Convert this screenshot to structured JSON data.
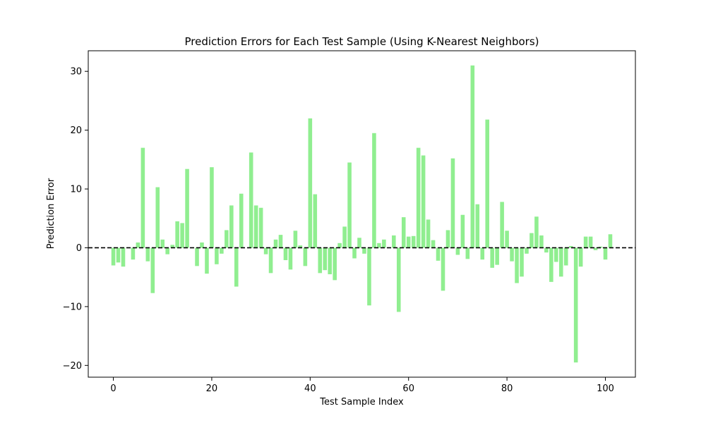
{
  "chart_data": {
    "type": "bar",
    "title": "Prediction Errors for Each Test Sample (Using K-Nearest Neighbors)",
    "xlabel": "Test Sample Index",
    "ylabel": "Prediction Error",
    "xlim": [
      -5.1,
      106.1
    ],
    "ylim": [
      -22.0,
      33.5
    ],
    "xticks": [
      0,
      20,
      40,
      60,
      80,
      100
    ],
    "yticks": [
      -20,
      -10,
      0,
      10,
      20,
      30
    ],
    "xtick_labels": [
      "0",
      "20",
      "40",
      "60",
      "80",
      "100"
    ],
    "ytick_labels": [
      "−20",
      "−10",
      "0",
      "10",
      "20",
      "30"
    ],
    "bar_color": "#90ee90",
    "reference_line": {
      "y": 0,
      "style": "dashed",
      "color": "#000000"
    },
    "grid": false,
    "x": [
      0,
      1,
      2,
      3,
      4,
      5,
      6,
      7,
      8,
      9,
      10,
      11,
      12,
      13,
      14,
      15,
      16,
      17,
      18,
      19,
      20,
      21,
      22,
      23,
      24,
      25,
      26,
      27,
      28,
      29,
      30,
      31,
      32,
      33,
      34,
      35,
      36,
      37,
      38,
      39,
      40,
      41,
      42,
      43,
      44,
      45,
      46,
      47,
      48,
      49,
      50,
      51,
      52,
      53,
      54,
      55,
      56,
      57,
      58,
      59,
      60,
      61,
      62,
      63,
      64,
      65,
      66,
      67,
      68,
      69,
      70,
      71,
      72,
      73,
      74,
      75,
      76,
      77,
      78,
      79,
      80,
      81,
      82,
      83,
      84,
      85,
      86,
      87,
      88,
      89,
      90,
      91,
      92,
      93,
      94,
      95,
      96,
      97,
      98,
      99,
      100,
      101
    ],
    "values": [
      -3.0,
      -2.5,
      -3.2,
      0.0,
      -2.0,
      0.9,
      17.0,
      -2.3,
      -7.7,
      10.3,
      1.4,
      -1.1,
      0.5,
      4.5,
      4.2,
      13.4,
      0.0,
      -3.1,
      0.9,
      -4.4,
      13.7,
      -2.8,
      -1.0,
      3.0,
      7.2,
      -6.6,
      9.2,
      0.0,
      16.2,
      7.2,
      6.8,
      -1.1,
      -4.3,
      1.4,
      2.2,
      -2.1,
      -3.7,
      2.9,
      0.4,
      -3.1,
      22.0,
      9.1,
      -4.3,
      -3.8,
      -4.5,
      -5.5,
      0.8,
      3.6,
      14.5,
      -1.8,
      1.7,
      -1.0,
      -9.8,
      19.5,
      0.8,
      1.4,
      0.0,
      2.1,
      -10.9,
      5.2,
      1.9,
      2.0,
      17.0,
      15.7,
      4.8,
      1.3,
      -2.2,
      -7.3,
      3.0,
      15.2,
      -1.2,
      5.6,
      -1.9,
      31.0,
      7.4,
      -2.0,
      21.8,
      -3.4,
      -2.9,
      7.8,
      2.9,
      -2.3,
      -6.0,
      -4.9,
      -1.0,
      2.5,
      5.3,
      2.1,
      -0.8,
      -5.8,
      -2.4,
      -4.9,
      -3.0,
      0.3,
      -19.5,
      -3.2,
      1.9,
      1.9,
      -0.4,
      0.2,
      -2.0,
      2.3
    ]
  }
}
